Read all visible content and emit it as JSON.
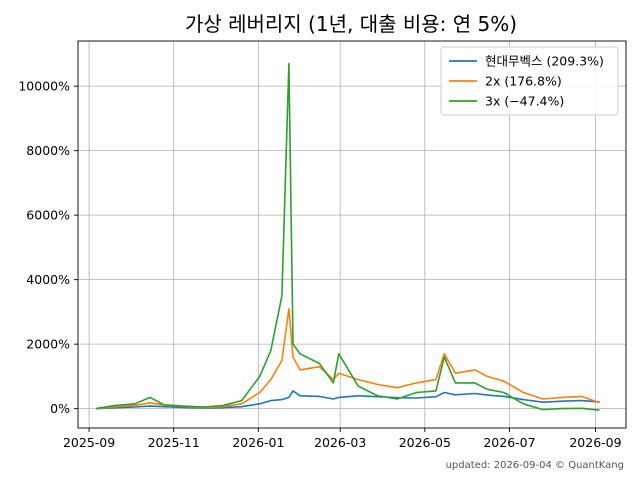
{
  "chart_data": {
    "type": "line",
    "title": "가상 레버리지 (1년, 대출 비용: 연 5%)",
    "xlabel": "",
    "ylabel": "",
    "xlim": [
      "2025-08-24",
      "2026-09-23"
    ],
    "ylim": [
      -600,
      11400
    ],
    "grid": true,
    "legend_position": "top-right",
    "x_ticks": [
      "2025-09-01",
      "2025-11-01",
      "2026-01-01",
      "2026-03-01",
      "2026-05-01",
      "2026-07-01",
      "2026-09-01"
    ],
    "x_tick_labels": [
      "2025-09",
      "2025-11",
      "2026-01",
      "2026-03",
      "2026-05",
      "2026-07",
      "2026-09"
    ],
    "y_ticks": [
      0,
      2000,
      4000,
      6000,
      8000,
      10000
    ],
    "y_tick_labels": [
      "0%",
      "2000%",
      "4000%",
      "6000%",
      "8000%",
      "10000%"
    ],
    "x": [
      "2025-09-06",
      "2025-09-20",
      "2025-10-04",
      "2025-10-15",
      "2025-10-25",
      "2025-11-08",
      "2025-11-22",
      "2025-12-06",
      "2025-12-20",
      "2026-01-02",
      "2026-01-10",
      "2026-01-18",
      "2026-01-23",
      "2026-01-26",
      "2026-01-31",
      "2026-02-14",
      "2026-02-24",
      "2026-02-28",
      "2026-03-14",
      "2026-03-28",
      "2026-04-11",
      "2026-04-25",
      "2026-05-09",
      "2026-05-15",
      "2026-05-23",
      "2026-06-06",
      "2026-06-15",
      "2026-06-27",
      "2026-07-11",
      "2026-07-25",
      "2026-08-08",
      "2026-08-22",
      "2026-09-04"
    ],
    "series": [
      {
        "name": "현대무벡스 (209.3%)",
        "color": "#1f77b4",
        "values": [
          0,
          30,
          50,
          80,
          60,
          40,
          20,
          30,
          60,
          150,
          250,
          280,
          350,
          550,
          400,
          380,
          300,
          350,
          400,
          370,
          340,
          330,
          370,
          500,
          430,
          470,
          420,
          380,
          280,
          200,
          230,
          250,
          210
        ]
      },
      {
        "name": "2x (176.8%)",
        "color": "#ff7f0e",
        "values": [
          0,
          60,
          100,
          180,
          110,
          70,
          40,
          60,
          150,
          500,
          900,
          1500,
          3100,
          1600,
          1200,
          1300,
          900,
          1100,
          900,
          750,
          650,
          800,
          900,
          1700,
          1100,
          1200,
          1000,
          850,
          500,
          300,
          350,
          380,
          180
        ]
      },
      {
        "name": "3x (−47.4%)",
        "color": "#2ca02c",
        "values": [
          0,
          100,
          150,
          350,
          120,
          80,
          50,
          90,
          250,
          1000,
          1800,
          3500,
          10700,
          2000,
          1700,
          1400,
          800,
          1700,
          700,
          400,
          300,
          500,
          550,
          1600,
          800,
          800,
          600,
          500,
          150,
          -30,
          0,
          10,
          -47
        ]
      }
    ]
  },
  "footer": {
    "note": "updated: 2026-09-04 © QuantKang"
  }
}
